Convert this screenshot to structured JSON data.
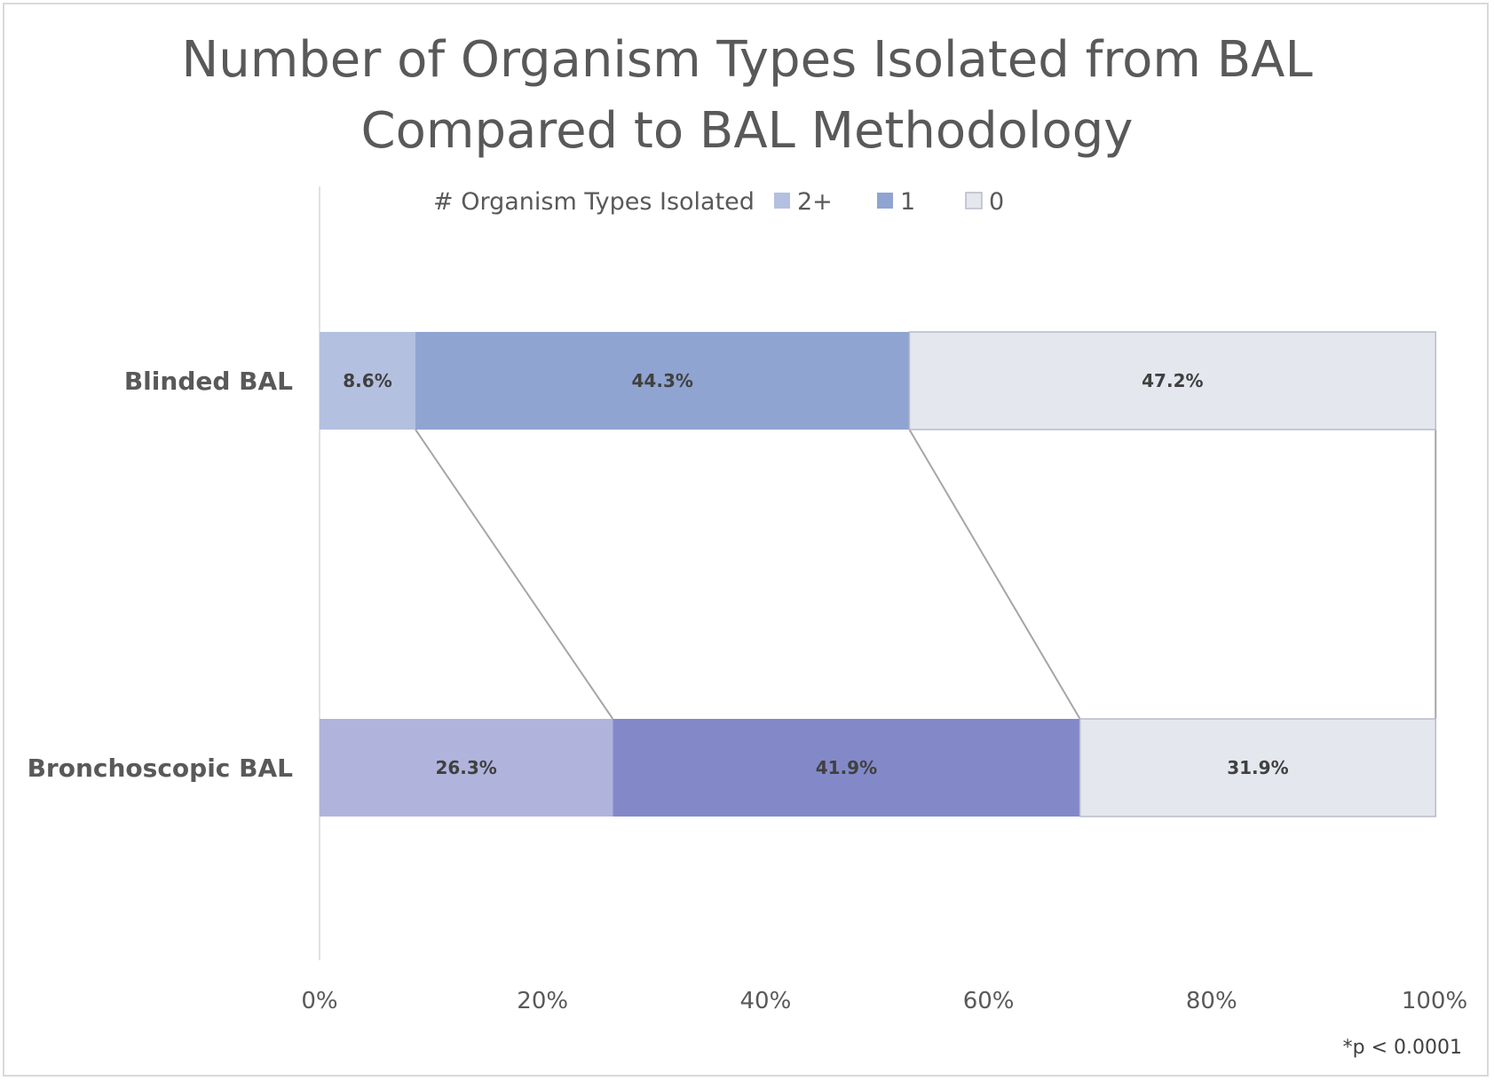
{
  "chart_data": {
    "type": "bar",
    "orientation": "horizontal",
    "stacked": "100%",
    "title": "Number of Organism Types Isolated from BAL Compared to BAL Methodology",
    "title_lines": [
      "Number of Organism Types Isolated from BAL",
      "Compared to BAL Methodology"
    ],
    "legend_title": "# Organism Types Isolated",
    "legend_position": "top",
    "categories": [
      "Blinded BAL",
      "Bronchoscopic BAL"
    ],
    "series": [
      {
        "name": "2+",
        "values": [
          8.6,
          26.3
        ],
        "labels": [
          "8.6%",
          "26.3%"
        ],
        "colors": [
          "#b4c0e0",
          "#b0b3dc"
        ]
      },
      {
        "name": "1",
        "values": [
          44.3,
          41.9
        ],
        "labels": [
          "44.3%",
          "41.9%"
        ],
        "colors": [
          "#8fa4d0",
          "#8389c8"
        ]
      },
      {
        "name": "0",
        "values": [
          47.2,
          31.9
        ],
        "labels": [
          "47.2%",
          "31.9%"
        ],
        "colors": [
          "#e4e7ed",
          "#e4e7ed"
        ]
      }
    ],
    "legend_colors": [
      "#b4c0e0",
      "#8fa4d0",
      "#e4e7ed"
    ],
    "x_ticks": [
      "0%",
      "20%",
      "40%",
      "60%",
      "80%",
      "100%"
    ],
    "xlim": [
      0,
      100
    ],
    "series_lines": true,
    "grid": false
  },
  "footnote": "*p < 0.0001"
}
